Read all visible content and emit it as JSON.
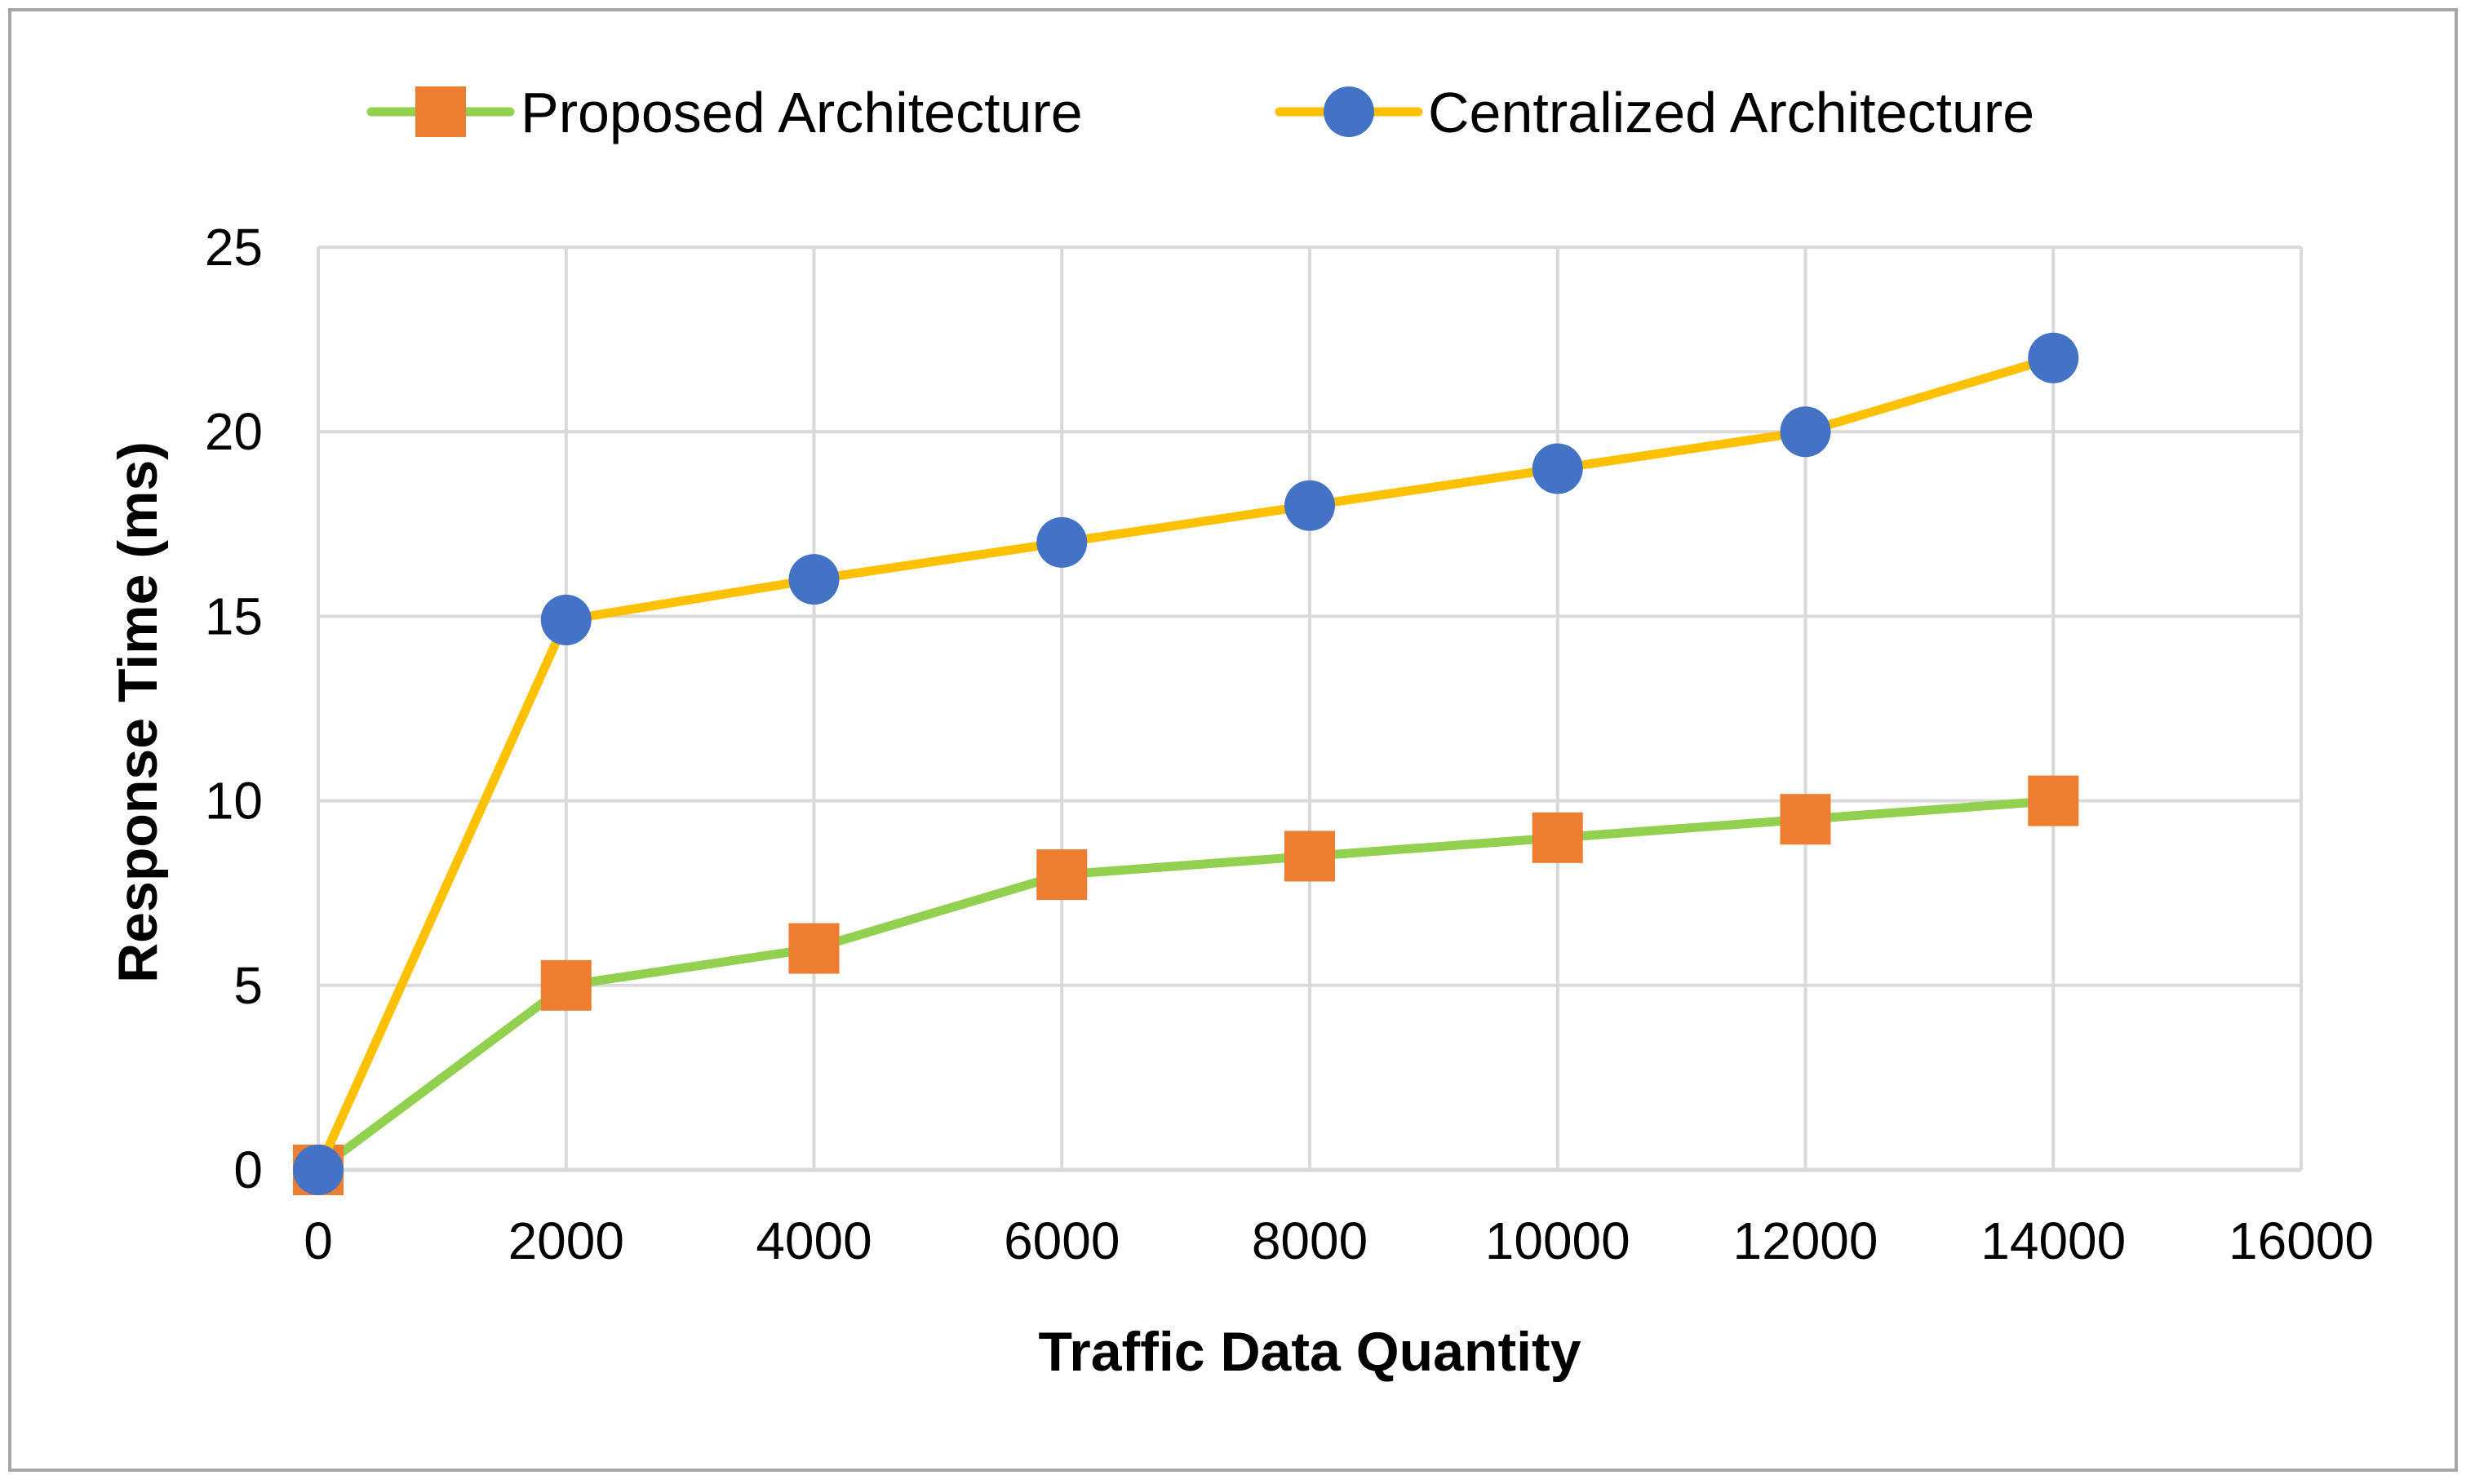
{
  "colors": {
    "proposed_line": "#92D050",
    "proposed_marker": "#ED7D31",
    "centralized_line": "#FFC000",
    "centralized_marker": "#4472C4",
    "grid": "#D9D9D9",
    "frame": "#A6A6A6"
  },
  "chart_data": {
    "type": "line",
    "title": "",
    "xlabel": "Traffic Data Quantity",
    "ylabel": "Response Time (ms)",
    "xlim": [
      0,
      16000
    ],
    "ylim": [
      0,
      25
    ],
    "x_ticks": [
      0,
      2000,
      4000,
      6000,
      8000,
      10000,
      12000,
      14000,
      16000
    ],
    "y_ticks": [
      0,
      5,
      10,
      15,
      20,
      25
    ],
    "grid": true,
    "legend_position": "top-center",
    "x": [
      0,
      2000,
      4000,
      6000,
      8000,
      10000,
      12000,
      14000
    ],
    "series": [
      {
        "name": "Proposed Architecture",
        "marker": "square",
        "values": [
          0,
          5,
          6,
          8,
          8.5,
          9,
          9.5,
          10
        ]
      },
      {
        "name": "Centralized Architecture",
        "marker": "circle",
        "values": [
          0,
          14.9,
          16,
          17,
          18,
          19,
          20,
          22
        ]
      }
    ]
  }
}
